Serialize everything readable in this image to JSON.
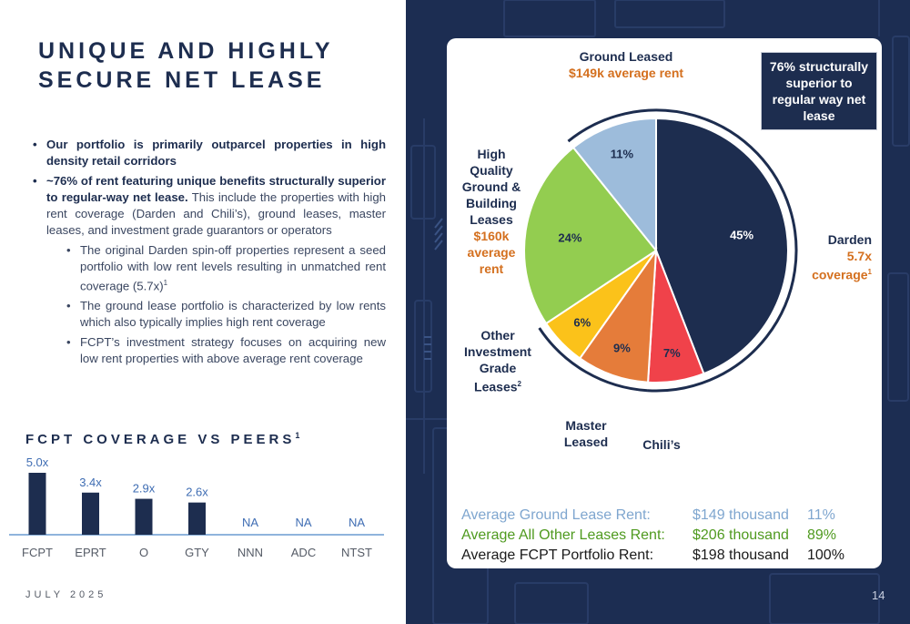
{
  "title": "UNIQUE AND HIGHLY SECURE NET LEASE",
  "bullets": {
    "b1": "Our portfolio is primarily outparcel properties in high density retail corridors",
    "b2_bold": "~76% of rent featuring unique benefits structurally superior to regular-way net lease.",
    "b2_rest": "This include the properties with high rent coverage (Darden and Chili’s), ground leases, master leases, and investment grade guarantors or operators",
    "sub1": "The original Darden spin-off properties represent a seed portfolio with low rent levels resulting in unmatched rent coverage (5.7x)",
    "sub1_sup": "1",
    "sub2": "The ground lease portfolio is characterized by low rents which also typically implies high rent coverage",
    "sub3": "FCPT’s investment strategy focuses on acquiring new low rent properties with above average rent coverage"
  },
  "coverage": {
    "title": "FCPT COVERAGE VS PEERS",
    "title_sup": "1",
    "bar_color": "#1d2d4f",
    "na_color": "#3f6db3",
    "baseline_color": "#6a9bd1",
    "categories": [
      "FCPT",
      "EPRT",
      "O",
      "GTY",
      "NNN",
      "ADC",
      "NTST"
    ],
    "values": [
      5.0,
      3.4,
      2.9,
      2.6,
      null,
      null,
      null
    ],
    "labels": [
      "5.0x",
      "3.4x",
      "2.9x",
      "2.6x",
      "NA",
      "NA",
      "NA"
    ]
  },
  "date": "JULY 2025",
  "page_number": "14",
  "callout": "76% structurally superior to regular way net lease",
  "pie_labels": {
    "ground_leased": "Ground Leased",
    "ground_leased_sub": "$149k average rent",
    "hq_line1": "High",
    "hq_line2": "Quality",
    "hq_line3": "Ground &",
    "hq_line4": "Building",
    "hq_line5": "Leases",
    "hq_sub1": "$160k",
    "hq_sub2": "average",
    "hq_sub3": "rent",
    "other_line1": "Other",
    "other_line2": "Investment",
    "other_line3": "Grade",
    "other_line4": "Leases",
    "other_sup": "2",
    "master_line1": "Master",
    "master_line2": "Leased",
    "chilis": "Chili’s",
    "darden": "Darden",
    "darden_sub1": "5.7x",
    "darden_sub2": "coverage",
    "darden_sup": "1"
  },
  "chart_data": [
    {
      "type": "pie",
      "title": "",
      "slices": [
        {
          "name": "Darden",
          "value": 45,
          "label": "45%",
          "color": "#1d2d4f"
        },
        {
          "name": "Chili’s",
          "value": 7,
          "label": "7%",
          "color": "#f0424a"
        },
        {
          "name": "Master Leased",
          "value": 9,
          "label": "9%",
          "color": "#e57c3a"
        },
        {
          "name": "Other Investment Grade Leases",
          "value": 6,
          "label": "6%",
          "color": "#fbc21a"
        },
        {
          "name": "High Quality Ground & Building Leases",
          "value": 24,
          "label": "24%",
          "color": "#93cd50"
        },
        {
          "name": "Ground Leased",
          "value": 11,
          "label": "11%",
          "color": "#9dbcdb"
        }
      ]
    },
    {
      "type": "bar",
      "title": "FCPT COVERAGE VS PEERS",
      "categories": [
        "FCPT",
        "EPRT",
        "O",
        "GTY",
        "NNN",
        "ADC",
        "NTST"
      ],
      "values": [
        5.0,
        3.4,
        2.9,
        2.6,
        null,
        null,
        null
      ],
      "ylim": [
        0,
        5.0
      ]
    }
  ],
  "stats": [
    {
      "label": "Average Ground Lease Rent:",
      "value": "$149 thousand",
      "pct": "11%",
      "color": "#7fa6cf"
    },
    {
      "label": "Average All Other Leases Rent:",
      "value": "$206 thousand",
      "pct": "89%",
      "color": "#4f9a1f"
    },
    {
      "label": "Average FCPT Portfolio Rent:",
      "value": "$198 thousand",
      "pct": "100%",
      "color": "#1a1a1a"
    }
  ]
}
